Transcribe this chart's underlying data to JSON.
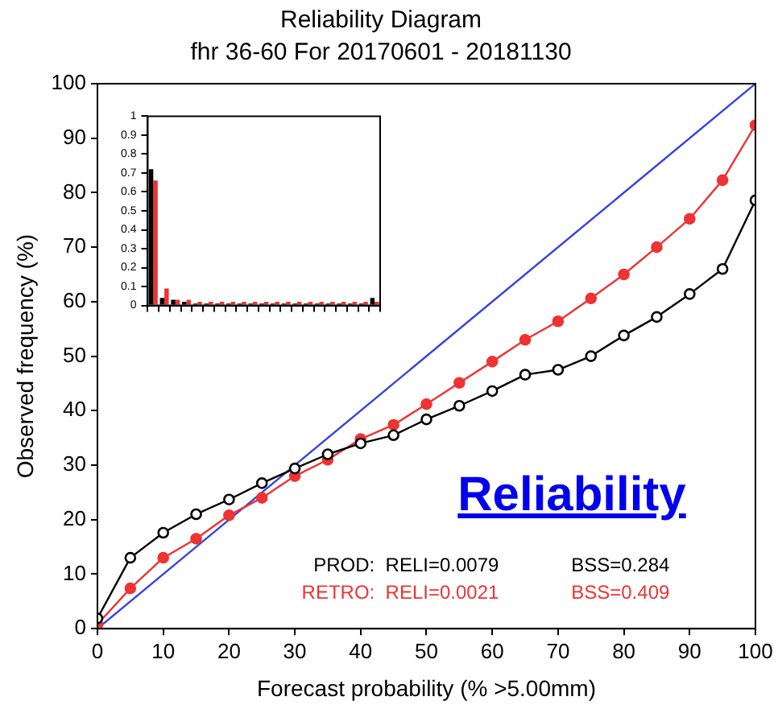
{
  "chart_data": [
    {
      "type": "line",
      "title": "Reliability Diagram",
      "subtitle": "fhr 36-60 For 20170601 - 20181130",
      "xlabel": "Forecast probability (% >5.00mm)",
      "ylabel": "Observed frequency (%)",
      "x": [
        0,
        5,
        10,
        15,
        20,
        25,
        30,
        35,
        40,
        45,
        50,
        55,
        60,
        65,
        70,
        75,
        80,
        85,
        90,
        95,
        100
      ],
      "series": [
        {
          "color": "#000000",
          "marker": "circle",
          "values": [
            1.9,
            13,
            17.6,
            21,
            23.7,
            26.7,
            29.4,
            32,
            34,
            35.5,
            38.4,
            40.9,
            43.6,
            46.6,
            47.5,
            50,
            53.8,
            57.2,
            61.4,
            66,
            78.6
          ]
        },
        {
          "color": "#ee3333",
          "marker": "circle",
          "values": [
            0.8,
            7.4,
            13,
            16.5,
            20.8,
            24,
            28,
            31,
            34.8,
            37.4,
            41.2,
            45.1,
            49,
            53,
            56.4,
            60.6,
            65,
            70,
            75.2,
            82.3,
            92.4
          ]
        },
        {
          "color": "#3344dd",
          "marker": "none",
          "x": [
            0,
            100
          ],
          "values": [
            0,
            100
          ]
        }
      ],
      "xlim": [
        0,
        100
      ],
      "xticks": [
        0,
        10,
        20,
        30,
        40,
        50,
        60,
        70,
        80,
        90,
        100
      ],
      "ylim": [
        0,
        100
      ],
      "yticks": [
        0,
        10,
        20,
        30,
        40,
        50,
        60,
        70,
        80,
        90,
        100
      ],
      "grid": false,
      "legend": false,
      "annotations": [
        "Reliability",
        "PROD:  RELI=0.0079",
        "BSS=0.284",
        "RETRO:  RELI=0.0021",
        "BSS=0.409"
      ]
    },
    {
      "type": "bar",
      "categories": [
        null,
        null,
        null,
        null,
        null,
        null,
        null,
        null,
        null,
        null,
        null,
        null,
        null,
        null,
        null,
        null,
        null,
        null,
        null,
        null,
        null
      ],
      "series": [
        {
          "color": "#000000",
          "values": [
            0.72,
            0.04,
            0.03,
            0.02,
            0.01,
            0.01,
            0.01,
            0.01,
            0.01,
            0.01,
            0.01,
            0.01,
            0.01,
            0.01,
            0.01,
            0.01,
            0.01,
            0.01,
            0.01,
            0.01,
            0.04
          ]
        },
        {
          "color": "#ee3333",
          "values": [
            0.66,
            0.09,
            0.03,
            0.03,
            0.02,
            0.02,
            0.02,
            0.02,
            0.02,
            0.02,
            0.02,
            0.02,
            0.02,
            0.02,
            0.02,
            0.02,
            0.02,
            0.02,
            0.02,
            0.02,
            0.02
          ]
        }
      ],
      "ylim": [
        0,
        1
      ],
      "yticks": [
        0,
        0.1,
        0.2,
        0.3,
        0.4,
        0.5,
        0.6,
        0.7,
        0.8,
        0.9,
        1
      ],
      "grid": false,
      "legend": false,
      "tick_labels": "y"
    }
  ]
}
